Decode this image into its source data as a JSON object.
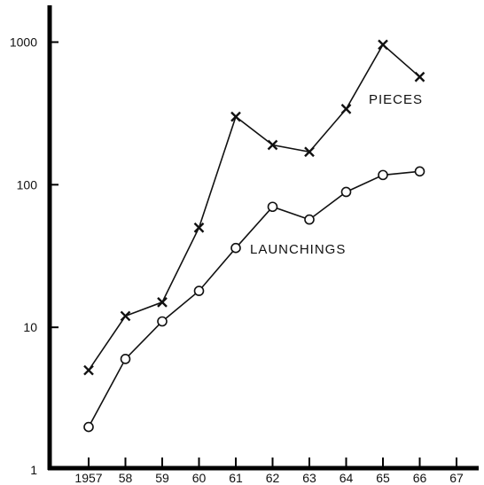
{
  "chart_data": {
    "type": "line",
    "title": "",
    "xlabel": "",
    "ylabel": "",
    "y_scale": "log",
    "ylim": [
      1,
      4000
    ],
    "xlim": [
      1957,
      1967
    ],
    "grid": false,
    "x_tick_labels": [
      "1957",
      "58",
      "59",
      "60",
      "61",
      "62",
      "63",
      "64",
      "65",
      "66",
      "67"
    ],
    "y_tick_labels": [
      "1",
      "10",
      "100",
      "1000"
    ],
    "y_tick_values": [
      1,
      10,
      100,
      1000
    ],
    "x": [
      1957,
      1958,
      1959,
      1960,
      1961,
      1962,
      1963,
      1964,
      1965,
      1966
    ],
    "series": [
      {
        "name": "PIECES",
        "marker": "x",
        "color": "#111111",
        "values": [
          5,
          12,
          15,
          50,
          300,
          190,
          170,
          340,
          960,
          570
        ]
      },
      {
        "name": "LAUNCHINGS",
        "marker": "circle",
        "color": "#111111",
        "values": [
          2,
          6,
          11,
          18,
          36,
          70,
          57,
          89,
          117,
          124
        ]
      }
    ]
  }
}
